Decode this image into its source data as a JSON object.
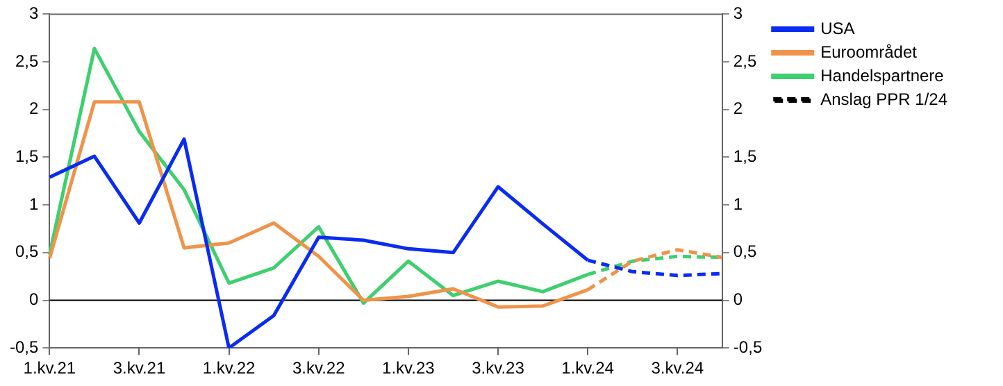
{
  "chart_data": {
    "type": "line",
    "categories": [
      "1.kv.21",
      null,
      "3.kv.21",
      null,
      "1.kv.22",
      null,
      "3.kv.22",
      null,
      "1.kv.23",
      null,
      "3.kv.23",
      null,
      "1.kv.24",
      null,
      "3.kv.24",
      null
    ],
    "series": [
      {
        "name": "USA",
        "color": "#0a2cf0",
        "values": [
          1.29,
          1.51,
          0.81,
          1.69,
          -0.5,
          -0.16,
          0.66,
          0.63,
          0.54,
          0.5,
          1.19,
          0.8,
          0.42,
          null,
          null,
          null
        ]
      },
      {
        "name": "Euroområdet",
        "color": "#f0934a",
        "values": [
          0.44,
          2.08,
          2.08,
          0.55,
          0.6,
          0.81,
          0.46,
          0,
          0.04,
          0.12,
          -0.07,
          -0.06,
          0.11,
          null,
          null,
          null
        ]
      },
      {
        "name": "Handelspartnere",
        "color": "#3ecf6e",
        "values": [
          0.48,
          2.64,
          1.77,
          1.16,
          0.18,
          0.34,
          0.77,
          -0.03,
          0.41,
          0.05,
          0.2,
          0.09,
          0.27,
          null,
          null,
          null
        ]
      },
      {
        "color": "#0a2cf0",
        "line_style": "dashed",
        "values": [
          null,
          null,
          null,
          null,
          null,
          null,
          null,
          null,
          null,
          null,
          null,
          null,
          0.42,
          0.3,
          0.26,
          0.28
        ]
      },
      {
        "color": "#f0934a",
        "line_style": "dashed",
        "values": [
          null,
          null,
          null,
          null,
          null,
          null,
          null,
          null,
          null,
          null,
          null,
          null,
          0.11,
          0.41,
          0.53,
          0.45
        ]
      },
      {
        "color": "#3ecf6e",
        "line_style": "dashed",
        "values": [
          null,
          null,
          null,
          null,
          null,
          null,
          null,
          null,
          null,
          null,
          null,
          null,
          0.27,
          0.41,
          0.46,
          0.45
        ]
      },
      {
        "name": "Anslag PPR 1/24",
        "color": "#000000",
        "line_style": "dashed",
        "values": [
          null,
          null,
          null,
          null,
          null,
          null,
          null,
          null,
          null,
          null,
          null,
          null,
          null,
          null,
          null,
          null
        ]
      }
    ],
    "ylim": [
      -0.5,
      3
    ],
    "yticks": [
      {
        "value": -0.5,
        "label": "-0,5"
      },
      0,
      {
        "value": 0.5,
        "label": "0,5"
      },
      1,
      {
        "value": 1.5,
        "label": "1,5"
      },
      2,
      {
        "value": 2.5,
        "label": "2,5"
      },
      3
    ],
    "y2lim": [
      -0.5,
      3
    ],
    "y2ticks": [
      {
        "value": -0.5,
        "label": "-0,5"
      },
      0,
      {
        "value": 0.5,
        "label": "0,5"
      },
      1,
      {
        "value": 1.5,
        "label": "1,5"
      },
      2,
      {
        "value": 2.5,
        "label": "2,5"
      },
      3
    ],
    "ref_lines": [
      {
        "axis": "y",
        "value": 0,
        "color": "#000000"
      }
    ],
    "legend": "right",
    "marker": "none",
    "line_style": "solid",
    "grid": false
  }
}
